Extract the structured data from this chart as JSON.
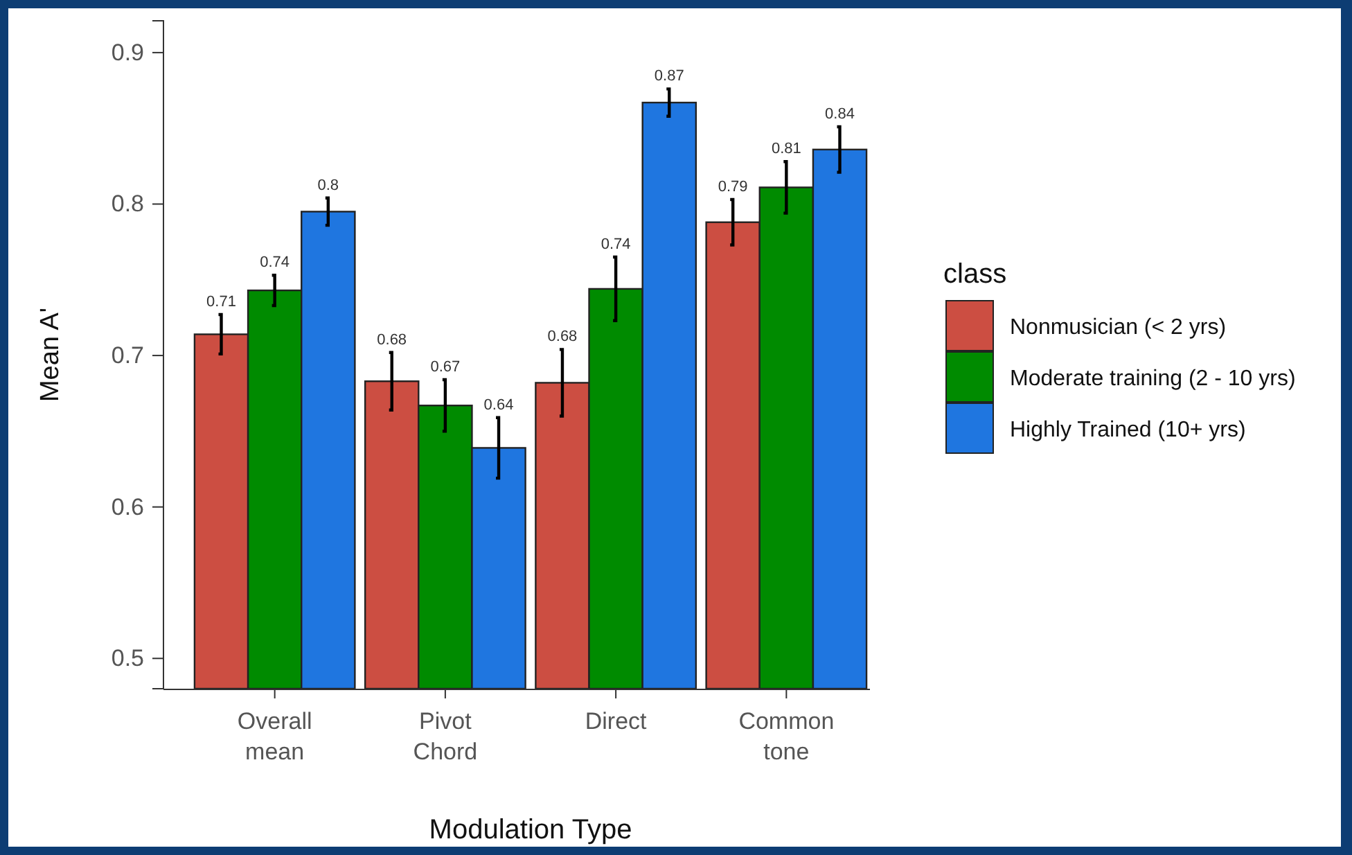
{
  "chart_data": {
    "type": "bar",
    "xlabel": "Modulation Type",
    "ylabel": "Mean A'",
    "legend_title": "class",
    "legend": "right",
    "categories": [
      "Overall mean",
      "Pivot Chord",
      "Direct",
      "Common tone"
    ],
    "ylim": [
      0.48,
      0.921
    ],
    "yticks": [
      0.5,
      0.6,
      0.7,
      0.8,
      0.9
    ],
    "grid": false,
    "series": [
      {
        "name": "Nonmusician (< 2 yrs)",
        "color": "#cc4e42",
        "values": [
          0.714,
          0.683,
          0.682,
          0.788
        ],
        "errors": [
          0.013,
          0.019,
          0.022,
          0.015
        ],
        "value_labels": [
          "0.71",
          "0.68",
          "0.68",
          "0.79"
        ]
      },
      {
        "name": "Moderate training (2 - 10 yrs)",
        "color": "#008b00",
        "values": [
          0.743,
          0.667,
          0.744,
          0.811
        ],
        "errors": [
          0.01,
          0.017,
          0.021,
          0.017
        ],
        "value_labels": [
          "0.74",
          "0.67",
          "0.74",
          "0.81"
        ]
      },
      {
        "name": "Highly Trained (10+ yrs)",
        "color": "#1f76e0",
        "values": [
          0.795,
          0.639,
          0.867,
          0.836
        ],
        "errors": [
          0.009,
          0.02,
          0.009,
          0.015
        ],
        "value_labels": [
          "0.8",
          "0.64",
          "0.87",
          "0.84"
        ]
      }
    ]
  }
}
